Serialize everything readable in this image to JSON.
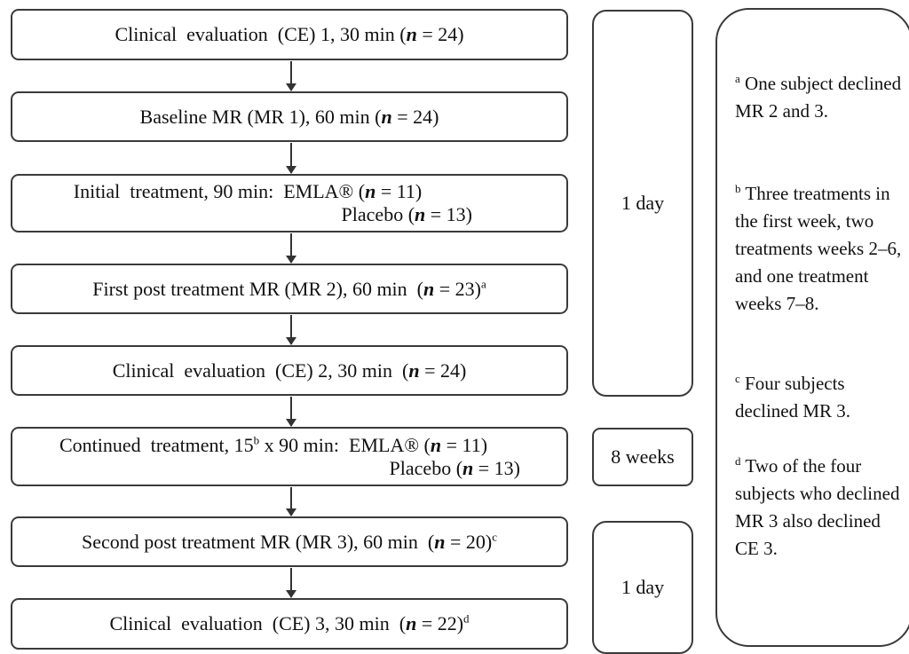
{
  "steps": [
    {
      "pre": "Clinical  evaluation  (CE) 1, 30 min (",
      "n": "n",
      "post": " = 24)",
      "sup": ""
    },
    {
      "pre": "Baseline MR (MR 1), 60 min (",
      "n": "n",
      "post": " = 24)",
      "sup": ""
    },
    {
      "l1_pre": "Initial  treatment, 90 min:  EMLA® (",
      "l1_n": "n",
      "l1_post": " = 11)",
      "l2_pre": "Placebo (",
      "l2_n": "n",
      "l2_post": " = 13)"
    },
    {
      "pre": "First post treatment MR (MR 2), 60 min  (",
      "n": "n",
      "post": " = 23)",
      "sup": "a"
    },
    {
      "pre": "Clinical  evaluation  (CE) 2, 30 min  (",
      "n": "n",
      "post": " = 24)",
      "sup": ""
    },
    {
      "l1_pre": "Continued  treatment, 15",
      "l1_sup": "b",
      "l1_mid": " x 90 min:  EMLA® (",
      "l1_n": "n",
      "l1_post": " = 11)",
      "l2_pre": "Placebo (",
      "l2_n": "n",
      "l2_post": " = 13)"
    },
    {
      "pre": "Second post treatment MR (MR 3), 60 min  (",
      "n": "n",
      "post": " = 20)",
      "sup": "c"
    },
    {
      "pre": "Clinical  evaluation  (CE) 3, 30 min  (",
      "n": "n",
      "post": " = 22)",
      "sup": "d"
    }
  ],
  "durations": [
    "1 day",
    "8 weeks",
    "1 day"
  ],
  "notes": [
    {
      "sup": "a",
      "text": " One subject declined  MR 2 and 3."
    },
    {
      "sup": "b",
      "text": " Three treatments in the first week, two treatments weeks 2–6, and one treatment weeks 7–8."
    },
    {
      "sup": "c",
      "text": " Four subjects declined  MR 3."
    },
    {
      "sup": "d",
      "text": " Two of the four subjects who declined  MR 3 also declined CE 3."
    }
  ]
}
